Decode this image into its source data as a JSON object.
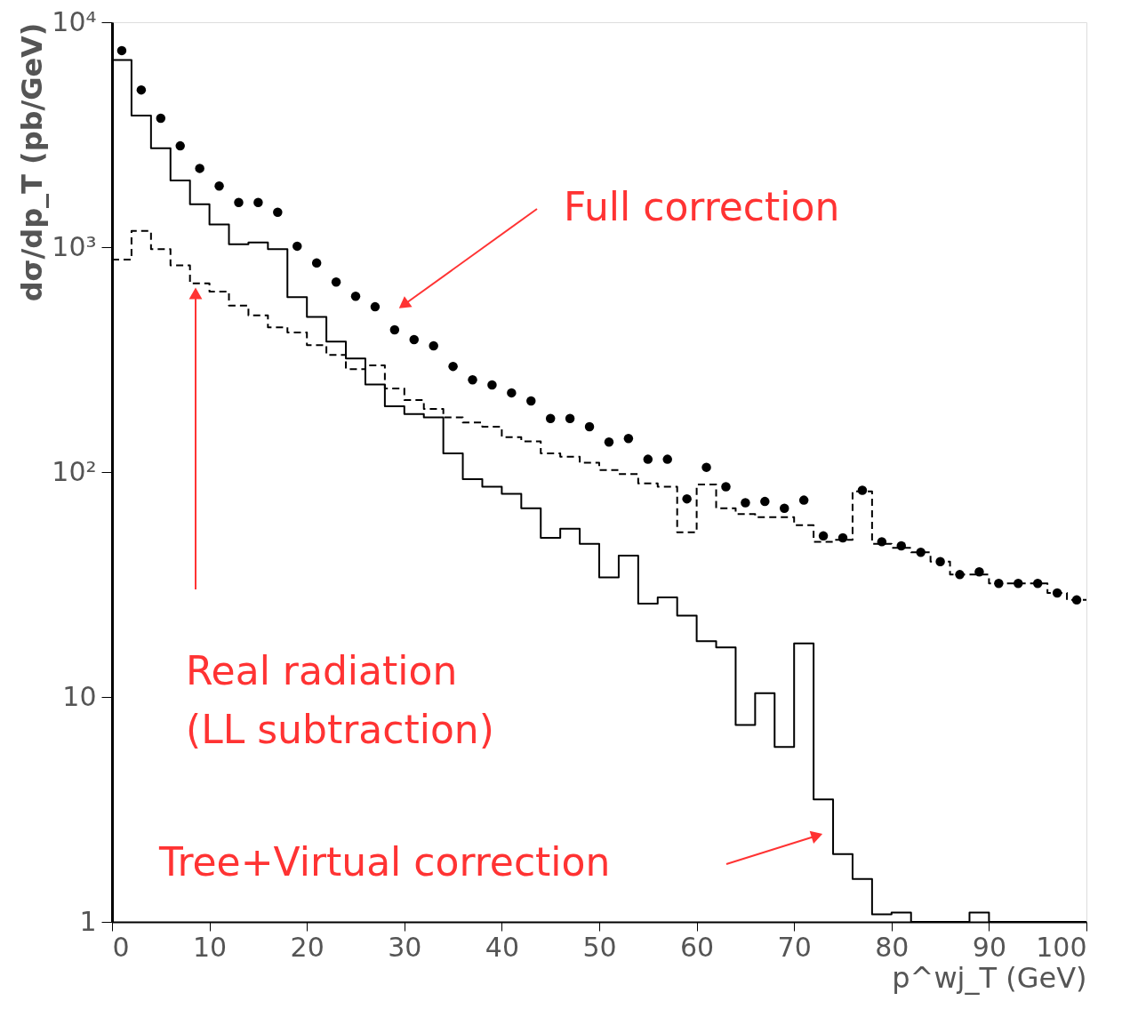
{
  "chart_data": {
    "type": "histogram",
    "xlabel": "p^wj_T (GeV)",
    "ylabel": "dσ/dp_T (pb/GeV)",
    "bins": [
      0,
      2,
      4,
      6,
      8,
      10,
      12,
      14,
      16,
      18,
      20,
      22,
      24,
      26,
      28,
      30,
      32,
      34,
      36,
      38,
      40,
      42,
      44,
      46,
      48,
      50,
      52,
      54,
      56,
      58,
      60,
      62,
      64,
      66,
      68,
      70,
      72,
      74,
      76,
      78,
      80,
      82,
      84,
      86,
      88,
      90,
      92,
      94,
      96,
      98,
      100
    ],
    "series": [
      {
        "color": "#000000",
        "line_style": "solid",
        "values": [
          6800,
          3850,
          2750,
          1980,
          1550,
          1260,
          1030,
          1050,
          980,
          600,
          490,
          380,
          320,
          245,
          196,
          181,
          175,
          121,
          93,
          86,
          80,
          69,
          51,
          56,
          48,
          34,
          42.5,
          26,
          27.7,
          23,
          17.7,
          16.6,
          7.5,
          10.4,
          6.0,
          17.3,
          3.5,
          2.0,
          1.55,
          1.08,
          1.1,
          null,
          null,
          null,
          1.1,
          null,
          null,
          null,
          null,
          null
        ]
      },
      {
        "color": "#000000",
        "line_style": "dashed",
        "values": [
          880,
          1180,
          980,
          830,
          690,
          635,
          550,
          497,
          440,
          417,
          367,
          332,
          287,
          298,
          235,
          209,
          191,
          175,
          166,
          159,
          143,
          137,
          121,
          117,
          110,
          102,
          98,
          89,
          86,
          54,
          88,
          69,
          65,
          63,
          63,
          58,
          49,
          50,
          82,
          48,
          46,
          44,
          40,
          35,
          35,
          32,
          32,
          32,
          29,
          27
        ]
      },
      {
        "type": "scatter",
        "color": "#000000",
        "marker": "circle",
        "x": [
          1,
          3,
          5,
          7,
          9,
          11,
          13,
          15,
          17,
          19,
          21,
          23,
          25,
          27,
          29,
          31,
          33,
          35,
          37,
          39,
          41,
          43,
          45,
          47,
          49,
          51,
          53,
          55,
          57,
          59,
          61,
          63,
          65,
          67,
          69,
          71,
          73,
          75,
          77,
          79,
          81,
          83,
          85,
          87,
          89,
          91,
          93,
          95,
          97,
          99
        ],
        "values": [
          7480,
          5000,
          3740,
          2820,
          2240,
          1870,
          1580,
          1580,
          1430,
          1010,
          850,
          700,
          605,
          543,
          429,
          388,
          364,
          295,
          257,
          244,
          225,
          207,
          173,
          173,
          159,
          136,
          141,
          114,
          114,
          76,
          105,
          86,
          73,
          74,
          69,
          75,
          52,
          51,
          83,
          49,
          47,
          44,
          40,
          35,
          36,
          32,
          32,
          32,
          29,
          27
        ]
      }
    ],
    "log": "y",
    "xlim": [
      0,
      100
    ],
    "xticks": [
      0,
      10,
      20,
      30,
      40,
      50,
      60,
      70,
      80,
      90,
      100
    ],
    "ylim": [
      1,
      10000
    ],
    "yticks": [
      1,
      10,
      {
        "value": 100,
        "label": "10²"
      },
      {
        "value": 1000,
        "label": "10³"
      },
      {
        "value": 10000,
        "label": "10⁴"
      }
    ],
    "grid": false,
    "annotations": [
      "Full correction",
      "Real radiation\n(LL subtraction)",
      "Tree+Virtual correction"
    ]
  }
}
